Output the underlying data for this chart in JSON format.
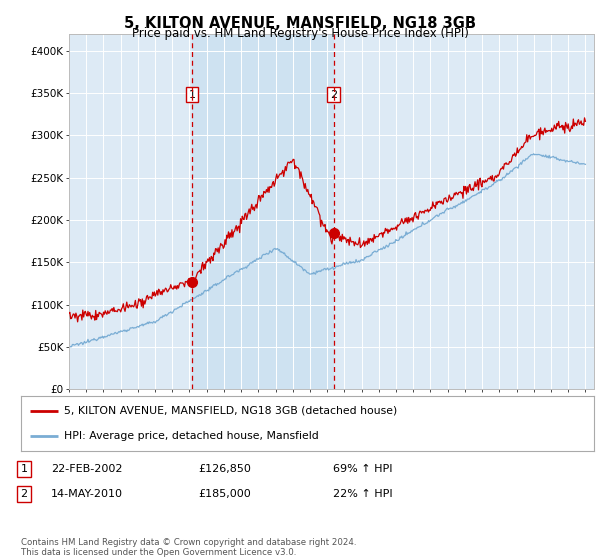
{
  "title": "5, KILTON AVENUE, MANSFIELD, NG18 3GB",
  "subtitle": "Price paid vs. HM Land Registry's House Price Index (HPI)",
  "bg_color": "#ddeaf5",
  "shade_color": "#c8dff0",
  "red_line_color": "#cc0000",
  "blue_line_color": "#7aadd4",
  "marker1_date_x": 2002.14,
  "marker1_y": 126850,
  "marker1_label": "1",
  "marker2_date_x": 2010.37,
  "marker2_y": 185000,
  "marker2_label": "2",
  "xmin": 1995.0,
  "xmax": 2025.5,
  "ymin": 0,
  "ymax": 420000,
  "yticks": [
    0,
    50000,
    100000,
    150000,
    200000,
    250000,
    300000,
    350000,
    400000
  ],
  "ytick_labels": [
    "£0",
    "£50K",
    "£100K",
    "£150K",
    "£200K",
    "£250K",
    "£300K",
    "£350K",
    "£400K"
  ],
  "legend_line1": "5, KILTON AVENUE, MANSFIELD, NG18 3GB (detached house)",
  "legend_line2": "HPI: Average price, detached house, Mansfield",
  "table_row1": [
    "1",
    "22-FEB-2002",
    "£126,850",
    "69% ↑ HPI"
  ],
  "table_row2": [
    "2",
    "14-MAY-2010",
    "£185,000",
    "22% ↑ HPI"
  ],
  "footnote": "Contains HM Land Registry data © Crown copyright and database right 2024.\nThis data is licensed under the Open Government Licence v3.0.",
  "xtick_years": [
    1995,
    1996,
    1997,
    1998,
    1999,
    2000,
    2001,
    2002,
    2003,
    2004,
    2005,
    2006,
    2007,
    2008,
    2009,
    2010,
    2011,
    2012,
    2013,
    2014,
    2015,
    2016,
    2017,
    2018,
    2019,
    2020,
    2021,
    2022,
    2023,
    2024,
    2025
  ]
}
